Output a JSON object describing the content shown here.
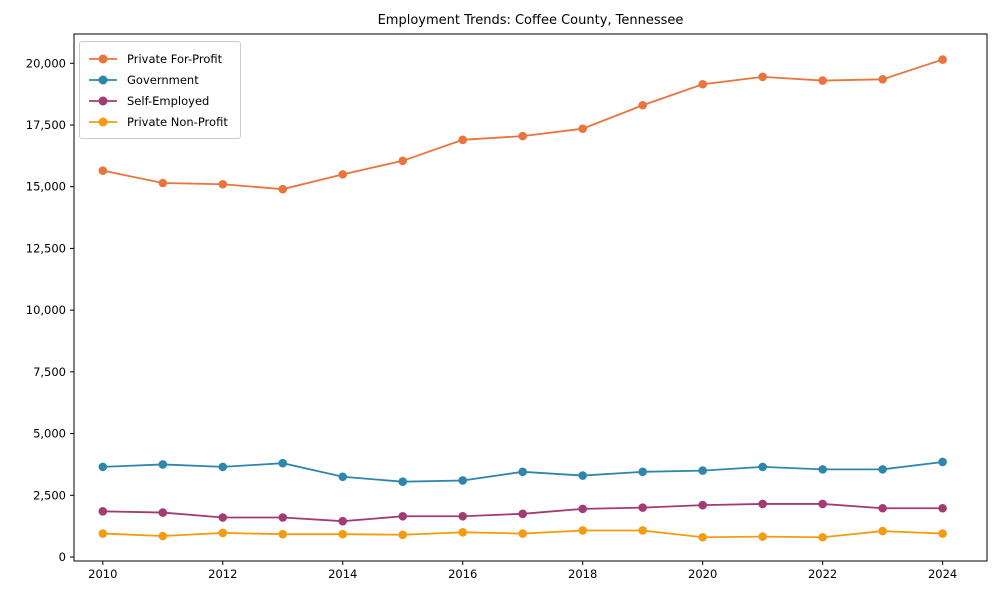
{
  "chart_data": {
    "type": "line",
    "title": "Employment Trends: Coffee County, Tennessee",
    "xlabel": "",
    "ylabel": "",
    "grid": false,
    "legend_position": "upper-left",
    "xlim": [
      2009.52,
      2024.74
    ],
    "ylim": [
      -162,
      21186
    ],
    "x": [
      2010,
      2011,
      2012,
      2013,
      2014,
      2015,
      2016,
      2017,
      2018,
      2019,
      2020,
      2021,
      2022,
      2023,
      2024
    ],
    "x_ticks": [
      2010,
      2012,
      2014,
      2016,
      2018,
      2020,
      2022,
      2024
    ],
    "x_tick_labels": [
      "2010",
      "2012",
      "2014",
      "2016",
      "2018",
      "2020",
      "2022",
      "2024"
    ],
    "y_ticks": [
      0,
      2500,
      5000,
      7500,
      10000,
      12500,
      15000,
      17500,
      20000
    ],
    "y_tick_labels": [
      "0",
      "2,500",
      "5,000",
      "7,500",
      "10,000",
      "12,500",
      "15,000",
      "17,500",
      "20,000"
    ],
    "series": [
      {
        "name": "Private For-Profit",
        "color": "#e9743d",
        "values": [
          15650,
          15150,
          15100,
          14900,
          15500,
          16050,
          16900,
          17050,
          17350,
          18300,
          19150,
          19450,
          19300,
          19350,
          20150
        ]
      },
      {
        "name": "Government",
        "color": "#2e86ab",
        "values": [
          3650,
          3750,
          3650,
          3800,
          3250,
          3050,
          3100,
          3450,
          3300,
          3450,
          3500,
          3650,
          3550,
          3550,
          3850
        ]
      },
      {
        "name": "Self-Employed",
        "color": "#a23b72",
        "values": [
          1850,
          1800,
          1600,
          1600,
          1450,
          1650,
          1650,
          1750,
          1950,
          2000,
          2100,
          2150,
          2150,
          1975,
          1975
        ]
      },
      {
        "name": "Private Non-Profit",
        "color": "#f39c12",
        "values": [
          950,
          850,
          975,
          925,
          925,
          900,
          1000,
          950,
          1075,
          1075,
          800,
          825,
          800,
          1050,
          950
        ]
      }
    ]
  }
}
